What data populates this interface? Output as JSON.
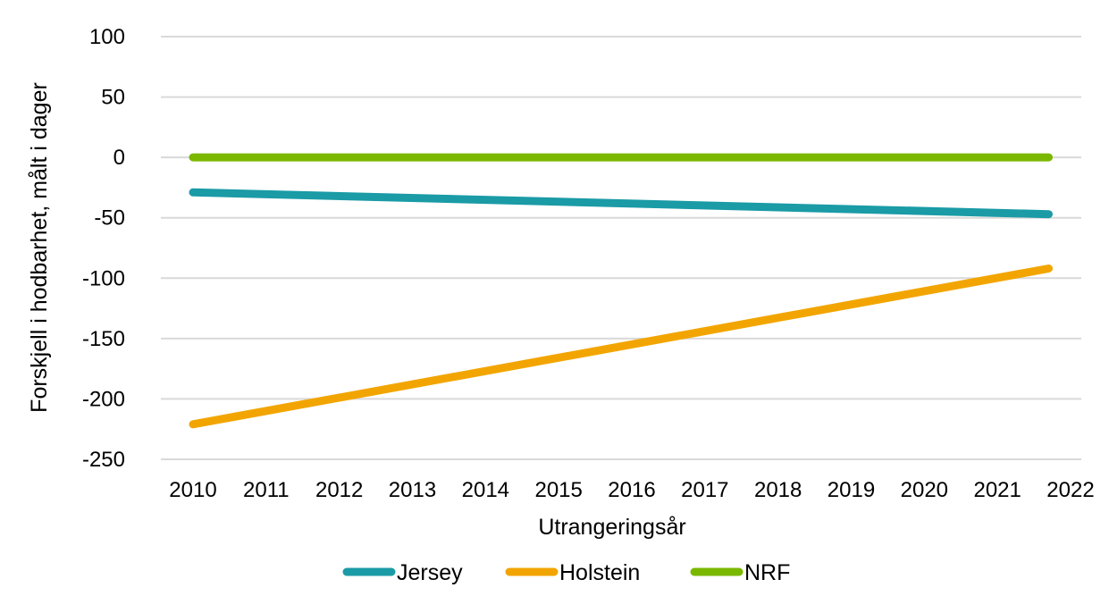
{
  "chart_data": {
    "type": "line",
    "title": "",
    "xlabel": "Utrangeringsår",
    "ylabel": "Forskjell i hodbarhet, målt i dager",
    "x_ticks": [
      "2010",
      "2011",
      "2012",
      "2013",
      "2014",
      "2015",
      "2016",
      "2017",
      "2018",
      "2019",
      "2020",
      "2021",
      "2022"
    ],
    "y_ticks": [
      100,
      50,
      0,
      -50,
      -100,
      -150,
      -200,
      -250
    ],
    "ylim": [
      -250,
      100
    ],
    "xlim": [
      2010,
      2022
    ],
    "grid": "horizontal",
    "legend_position": "bottom",
    "series": [
      {
        "name": "Jersey",
        "color": "#1a9ba6",
        "x": [
          2010,
          2021.7
        ],
        "y": [
          -29,
          -47
        ]
      },
      {
        "name": "Holstein",
        "color": "#f2a500",
        "x": [
          2010,
          2021.7
        ],
        "y": [
          -221,
          -92
        ]
      },
      {
        "name": "NRF",
        "color": "#7ab800",
        "x": [
          2010,
          2021.7
        ],
        "y": [
          0,
          0
        ]
      }
    ]
  }
}
